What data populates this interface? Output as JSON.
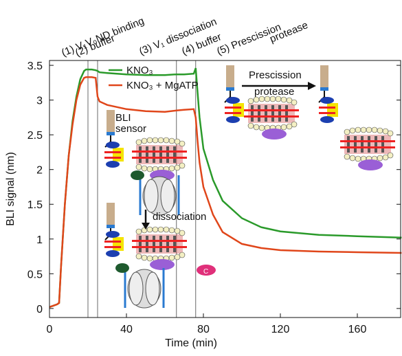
{
  "chart_data": {
    "type": "line",
    "x_label": "Time (min)",
    "y_label": "BLI signal (nm)",
    "x": [
      0,
      2,
      4,
      5,
      6,
      8,
      10,
      12,
      14,
      16,
      18,
      19,
      22,
      24,
      25,
      26,
      30,
      40,
      50,
      60,
      66,
      70,
      75,
      76,
      77,
      78,
      80,
      85,
      90,
      100,
      110,
      120,
      140,
      160,
      183
    ],
    "series": [
      {
        "name": "KNO₃",
        "color": "#2a9a2a",
        "values": [
          0.02,
          0.04,
          0.06,
          0.08,
          0.6,
          1.5,
          2.2,
          2.7,
          3.05,
          3.3,
          3.42,
          3.44,
          3.44,
          3.43,
          3.42,
          3.4,
          3.39,
          3.37,
          3.36,
          3.36,
          3.37,
          3.37,
          3.38,
          3.46,
          3.1,
          2.75,
          2.3,
          1.85,
          1.55,
          1.3,
          1.17,
          1.11,
          1.06,
          1.04,
          1.02
        ]
      },
      {
        "name": "KNO₃ + MgATP",
        "color": "#e0461a",
        "values": [
          0.02,
          0.04,
          0.06,
          0.08,
          0.6,
          1.5,
          2.2,
          2.65,
          3.0,
          3.22,
          3.32,
          3.33,
          3.33,
          3.32,
          3.05,
          2.98,
          2.93,
          2.87,
          2.84,
          2.83,
          2.85,
          2.86,
          2.87,
          2.75,
          2.4,
          2.1,
          1.75,
          1.35,
          1.1,
          0.93,
          0.87,
          0.84,
          0.82,
          0.81,
          0.8
        ]
      }
    ],
    "xlim": [
      0,
      182.5
    ],
    "ylim": [
      -0.13,
      3.57
    ],
    "xticks": [
      0,
      40,
      80,
      120,
      160
    ],
    "yticks": [
      0,
      0.5,
      1,
      1.5,
      2,
      2.5,
      3,
      3.5
    ],
    "phase_boundaries": [
      20,
      25,
      66,
      76
    ],
    "phase_labels": [
      "(1) V₁V₀ND binding",
      "(2) buffer",
      "(3) V₁ dissociation",
      "(4) buffer",
      "(5) Prescission",
      "protease"
    ],
    "annotations": {
      "sensor": [
        "BLI",
        "sensor"
      ],
      "dissociation": "dissociation",
      "protease": [
        "Prescission",
        "protease"
      ],
      "subunit_c": "C"
    }
  }
}
